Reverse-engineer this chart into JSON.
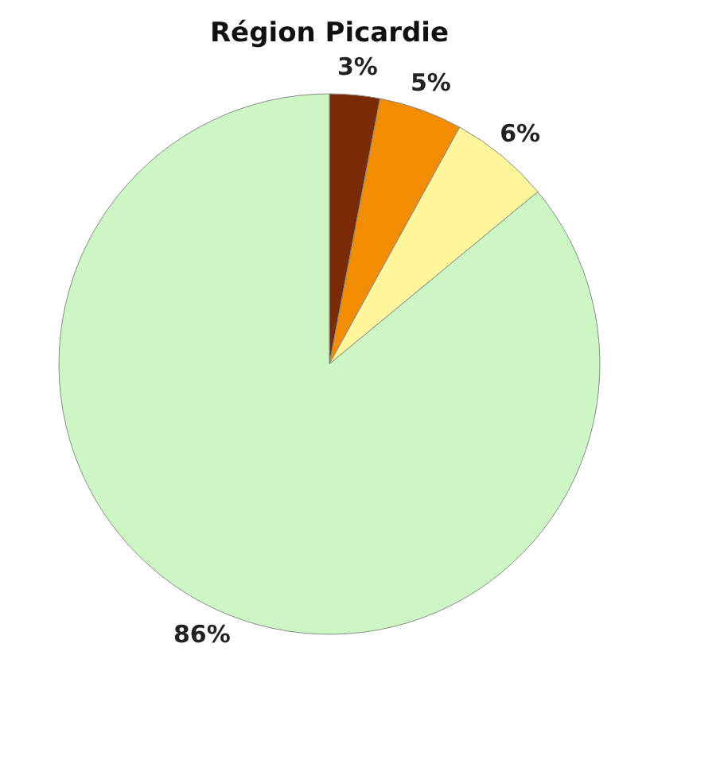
{
  "chart_data": {
    "type": "pie",
    "title": "Région Picardie",
    "categories": [
      null,
      null,
      null,
      null
    ],
    "values": [
      3,
      5,
      6,
      86
    ],
    "colors": [
      "#7a2a05",
      "#f28c00",
      "#fff59a",
      "#ccf7c4"
    ],
    "value_labels": [
      "3%",
      "5%",
      "6%",
      "86%"
    ],
    "legend": false
  }
}
